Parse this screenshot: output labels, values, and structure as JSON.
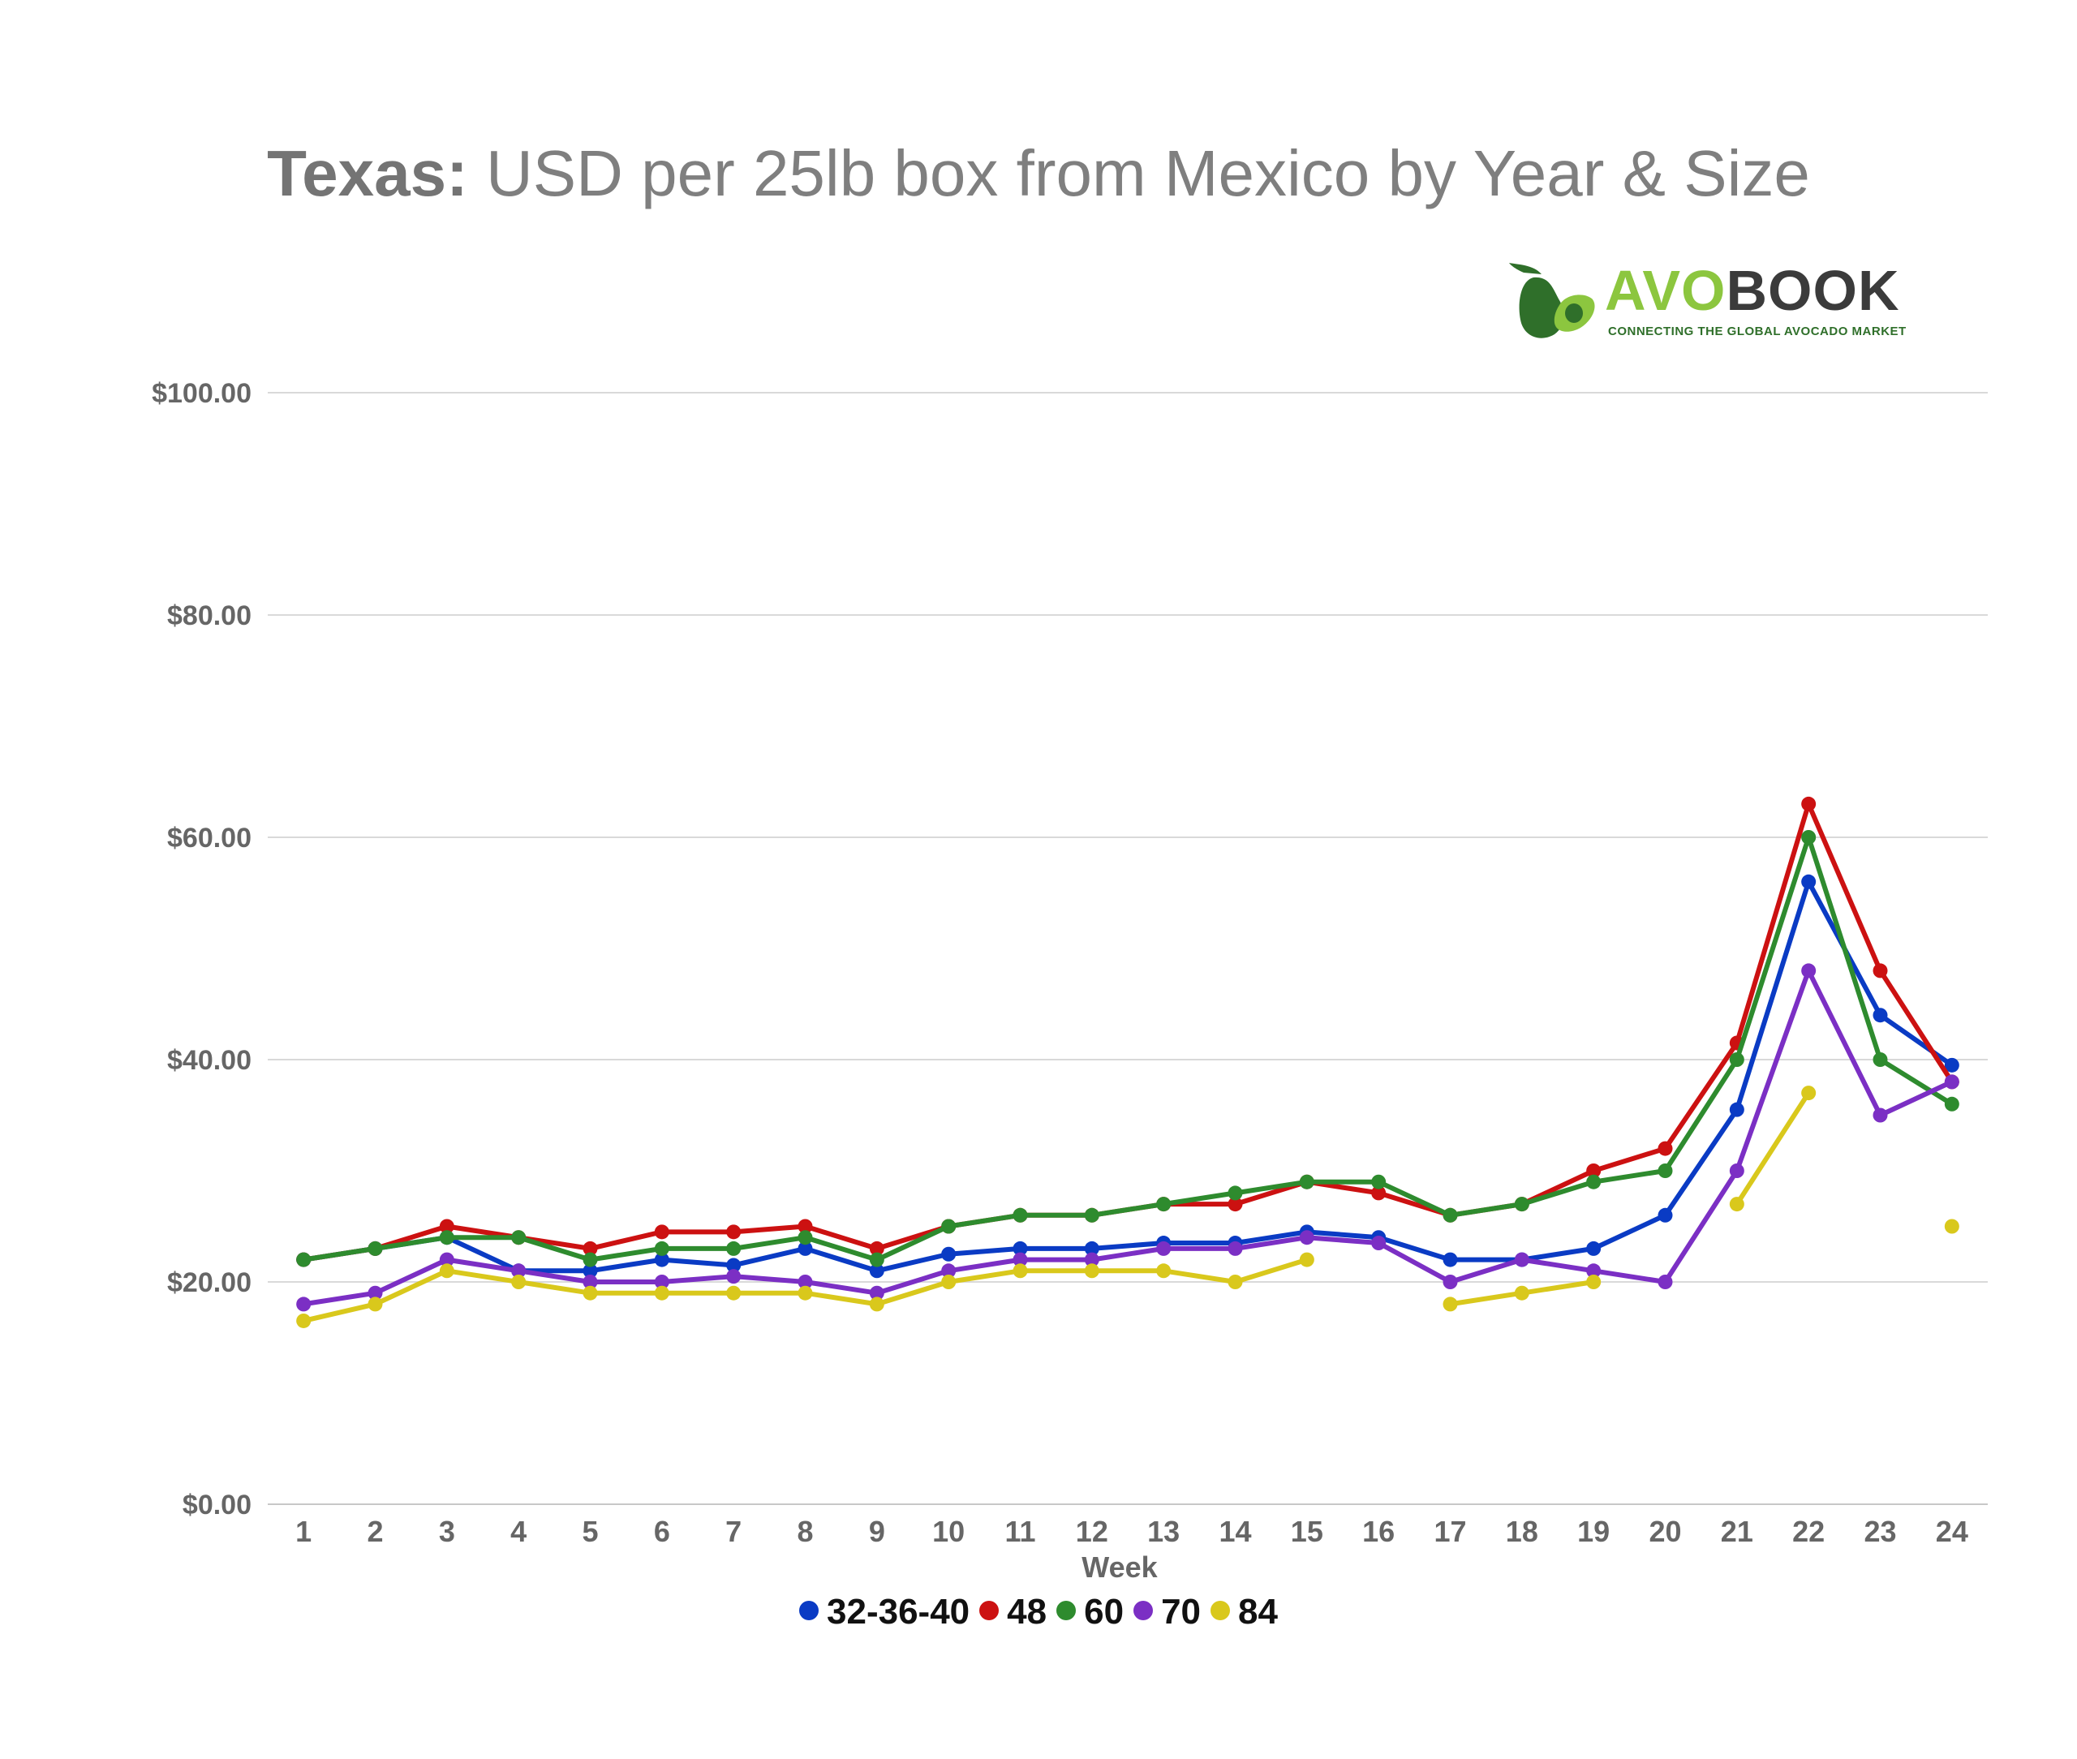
{
  "header": {
    "title_bold": "Texas:",
    "title_rest": "USD per 25lb box from Mexico by Year & Size"
  },
  "logo": {
    "word_avo": "AVO",
    "word_book": "BOOK",
    "tagline": "CONNECTING THE GLOBAL AVOCADO MARKET",
    "colors": {
      "avo": "#8cc63f",
      "book": "#3b3b3b",
      "leaf": "#2f6f2a"
    }
  },
  "chart_data": {
    "type": "line",
    "title": "Texas: USD per 25lb box from Mexico by Year & Size",
    "xlabel": "Week",
    "ylabel": "",
    "categories": [
      "1",
      "2",
      "3",
      "4",
      "5",
      "6",
      "7",
      "8",
      "9",
      "10",
      "11",
      "12",
      "13",
      "14",
      "15",
      "16",
      "17",
      "18",
      "19",
      "20",
      "21",
      "22",
      "23",
      "24"
    ],
    "ylim": [
      0,
      100
    ],
    "yticks": [
      0,
      20,
      40,
      60,
      80,
      100
    ],
    "ytick_labels": [
      "$0.00",
      "$20.00",
      "$40.00",
      "$60.00",
      "$80.00",
      "$100.00"
    ],
    "grid": true,
    "legend_position": "bottom",
    "series": [
      {
        "name": "32-36-40",
        "color": "#0a3bc4",
        "values": [
          22,
          23,
          24,
          21,
          21,
          22,
          21.5,
          23,
          21,
          22.5,
          23,
          23,
          23.5,
          23.5,
          24.5,
          24,
          22,
          22,
          23,
          26,
          35.5,
          56,
          44,
          39.5
        ]
      },
      {
        "name": "48",
        "color": "#cc1111",
        "values": [
          22,
          23,
          25,
          24,
          23,
          24.5,
          24.5,
          25,
          23,
          25,
          26,
          26,
          27,
          27,
          29,
          28,
          26,
          27,
          30,
          32,
          41.5,
          63,
          48,
          38
        ]
      },
      {
        "name": "60",
        "color": "#2e8b2e",
        "values": [
          22,
          23,
          24,
          24,
          22,
          23,
          23,
          24,
          22,
          25,
          26,
          26,
          27,
          28,
          29,
          29,
          26,
          27,
          29,
          30,
          40,
          60,
          40,
          36
        ]
      },
      {
        "name": "70",
        "color": "#7b2fc4",
        "values": [
          18,
          19,
          22,
          21,
          20,
          20,
          20.5,
          20,
          19,
          21,
          22,
          22,
          23,
          23,
          24,
          23.5,
          20,
          22,
          21,
          20,
          30,
          48,
          35,
          38
        ]
      },
      {
        "name": "84",
        "color": "#d9c81c",
        "values": [
          16.5,
          18,
          21,
          20,
          19,
          19,
          19,
          19,
          18,
          20,
          21,
          21,
          21,
          20,
          22,
          null,
          18,
          19,
          20,
          null,
          27,
          37,
          null,
          25
        ]
      }
    ]
  }
}
